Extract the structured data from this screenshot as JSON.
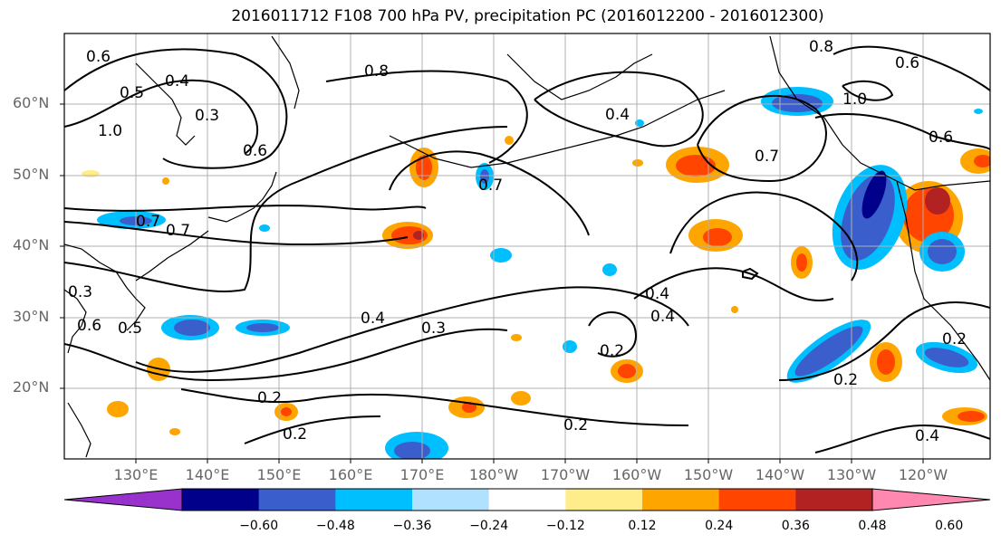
{
  "title": "2016011712 F108 700 hPa PV, precipitation PC (2016012200 - 2016012300)",
  "lat_labels": [
    "60°N",
    "50°N",
    "40°N",
    "30°N",
    "20°N"
  ],
  "lon_labels": [
    "130°E",
    "140°E",
    "150°E",
    "160°E",
    "170°E",
    "180°W",
    "170°W",
    "160°W",
    "150°W",
    "140°W",
    "130°W",
    "120°W"
  ],
  "contour_labels": [
    "0.6",
    "0.4",
    "0.8",
    "0.3",
    "0.5",
    "1.0",
    "0.6",
    "0.7",
    "0.4",
    "0.7",
    "0.7",
    "0.8",
    "0.6",
    "1.0",
    "0.6",
    "0.7",
    "0.4",
    "0.3",
    "0.4",
    "0.2",
    "0.2",
    "0.2",
    "0.2",
    "0.4",
    "0.2",
    "0.2",
    "0.4",
    "0.6",
    "0.5",
    "0.3"
  ],
  "colorbar": {
    "ticks": [
      "−0.60",
      "−0.48",
      "−0.36",
      "−0.24",
      "−0.12",
      "0.12",
      "0.24",
      "0.36",
      "0.48",
      "0.60"
    ],
    "colors": [
      "#9932cc",
      "#00008b",
      "#3a5fcd",
      "#00bfff",
      "#b0e2ff",
      "#ffffff",
      "#ffec8b",
      "#ffa500",
      "#ff4500",
      "#b22222",
      "#ff88b0"
    ]
  }
}
